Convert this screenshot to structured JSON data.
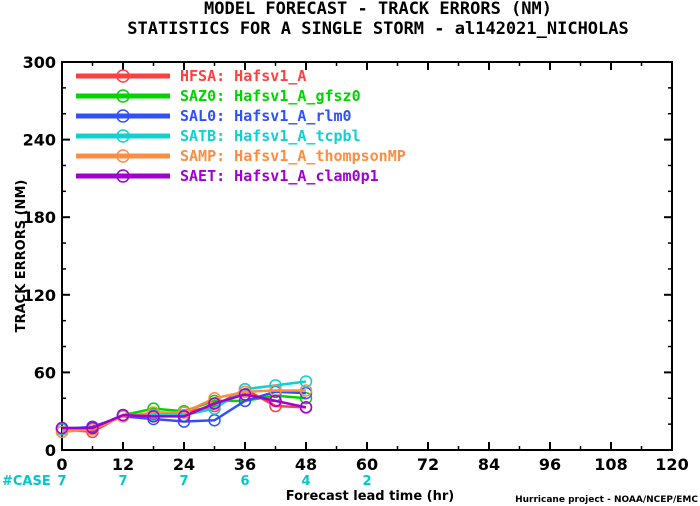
{
  "chart_data": {
    "type": "line",
    "title": "MODEL FORECAST - TRACK ERRORS (NM)",
    "subtitle": "STATISTICS FOR A SINGLE STORM - al142021_NICHOLAS",
    "xlabel": "Forecast lead time (hr)",
    "ylabel": "TRACK ERRORS (NM)",
    "xlim": [
      0,
      120
    ],
    "ylim": [
      0,
      300
    ],
    "x_ticks": [
      "0",
      "12",
      "24",
      "36",
      "48",
      "60",
      "72",
      "84",
      "96",
      "108",
      "120"
    ],
    "y_ticks": [
      "0",
      "60",
      "120",
      "180",
      "240",
      "300"
    ],
    "grid": false,
    "legend_position": "top-left",
    "case_label": "#CASE",
    "case_counts": [
      {
        "x": 0,
        "n": "7"
      },
      {
        "x": 12,
        "n": "7"
      },
      {
        "x": 24,
        "n": "7"
      },
      {
        "x": 36,
        "n": "6"
      },
      {
        "x": 48,
        "n": "4"
      },
      {
        "x": 60,
        "n": "2"
      }
    ],
    "credit": "Hurricane project - NOAA/NCEP/EMC",
    "series": [
      {
        "name": "HFSA: Hafsv1_A",
        "color": "#ff4040",
        "x": [
          0,
          6,
          12,
          18,
          24,
          30,
          36,
          42,
          48
        ],
        "y": [
          16,
          14,
          27,
          27,
          29,
          34,
          47,
          34,
          33
        ]
      },
      {
        "name": "SAZ0: Hafsv1_A_gfsz0",
        "color": "#00d400",
        "x": [
          0,
          6,
          12,
          18,
          24,
          30,
          36,
          42,
          48
        ],
        "y": [
          17,
          17,
          27,
          32,
          30,
          38,
          38,
          42,
          40
        ]
      },
      {
        "name": "SAL0: Hafsv1_A_rlm0",
        "color": "#3050ff",
        "x": [
          0,
          6,
          12,
          18,
          24,
          30,
          36,
          42,
          48
        ],
        "y": [
          16,
          18,
          26,
          24,
          22,
          23,
          38,
          45,
          44
        ]
      },
      {
        "name": "SATB: Hafsv1_A_tcpbl",
        "color": "#10d0d0",
        "x": [
          0,
          6,
          12,
          18,
          24,
          30,
          36,
          42,
          48
        ],
        "y": [
          16,
          16,
          27,
          27,
          27,
          32,
          47,
          50,
          53
        ]
      },
      {
        "name": "SAMP: Hafsv1_A_thompsonMP",
        "color": "#ff8c40",
        "x": [
          0,
          6,
          12,
          18,
          24,
          30,
          36,
          42,
          48
        ],
        "y": [
          14,
          16,
          26,
          29,
          29,
          40,
          45,
          46,
          46
        ]
      },
      {
        "name": "SAET: Hafsv1_A_clam0p1",
        "color": "#a000d0",
        "x": [
          0,
          6,
          12,
          18,
          24,
          30,
          36,
          42,
          48
        ],
        "y": [
          17,
          17,
          27,
          26,
          26,
          36,
          43,
          38,
          33
        ]
      }
    ]
  }
}
